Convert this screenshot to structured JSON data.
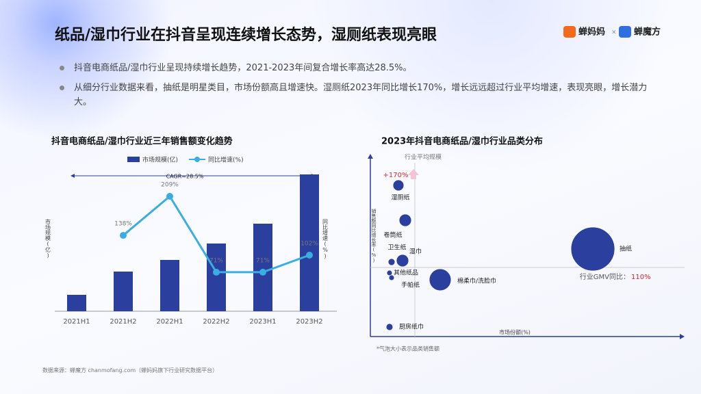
{
  "title": "纸品/湿巾行业在抖音呈现连续增长态势，湿厕纸表现亮眼",
  "logos": [
    "蝉妈妈",
    "×",
    "蝉魔方"
  ],
  "bullets": [
    "抖音电商纸品/湿巾行业呈现持续增长趋势，2021-2023年间复合增长率高达28.5%。",
    "从细分行业数据来看，抽纸是明星类目，市场份额高且增速快。湿厕纸2023年同比增长170%，增长远远超过行业平均增速，表现亮眼，增长潜力大。"
  ],
  "source": "数据来源：蝉魔方 chanmofang.com（蝉妈妈旗下行业研究数据平台）",
  "chart_data": [
    {
      "type": "bar-line",
      "title": "抖音电商纸品/湿巾行业近三年销售额变化趋势",
      "categories": [
        "2021H1",
        "2021H2",
        "2022H1",
        "2022H2",
        "2023H1",
        "2023H2"
      ],
      "y_label": "市场规模(亿)",
      "y2_label": "同比增速(%)",
      "annotation": "CAGR=28.5%",
      "series": [
        {
          "name": "市场规模(亿)",
          "color": "#2b3f9e",
          "values": [
            24,
            58,
            75,
            99,
            128,
            200
          ]
        },
        {
          "name": "同比增速(%)",
          "color": "#3aaee0",
          "axis": "y2",
          "values": [
            null,
            138,
            209,
            71,
            71,
            102
          ],
          "value_labels": [
            null,
            "138%",
            "209%",
            "71%",
            "71%",
            "102%"
          ]
        }
      ]
    },
    {
      "type": "bubble",
      "title": "2023年抖音电商纸品/湿巾行业品类分布",
      "x_label": "市场份额(%)",
      "y_label": "销售额同比增长率(%)",
      "note": "*气泡大小表示品类销售额",
      "annotation": "+170%",
      "xlim": [
        0,
        45.9
      ],
      "ylim": [
        59.5,
        193
      ],
      "color": "#2b3f9e",
      "reference_x": {
        "label": "行业平均规模",
        "value": 6.5
      },
      "reference_y": {
        "label": "行业GMV同比：",
        "value": 110,
        "value_label": "110%"
      },
      "points": [
        {
          "name": "湿厕纸",
          "x": 4.1,
          "y": 170,
          "size": 64
        },
        {
          "name": "卷筒纸",
          "x": 5.1,
          "y": 144.5,
          "size": 81
        },
        {
          "name": "湿巾",
          "x": 4.7,
          "y": 115,
          "size": 81
        },
        {
          "name": "卫生纸",
          "x": 3.1,
          "y": 114,
          "size": 25
        },
        {
          "name": "其他纸品",
          "x": 2.8,
          "y": 106,
          "size": 16
        },
        {
          "name": "手帕纸",
          "x": 3.1,
          "y": 102.5,
          "size": 16
        },
        {
          "name": "棉柔巾/洗脸巾",
          "x": 10.2,
          "y": 101,
          "size": 256
        },
        {
          "name": "抽纸",
          "x": 32.5,
          "y": 123.5,
          "size": 1024
        },
        {
          "name": "厨房纸巾",
          "x": 2.8,
          "y": 66.5,
          "size": 25
        }
      ]
    }
  ]
}
